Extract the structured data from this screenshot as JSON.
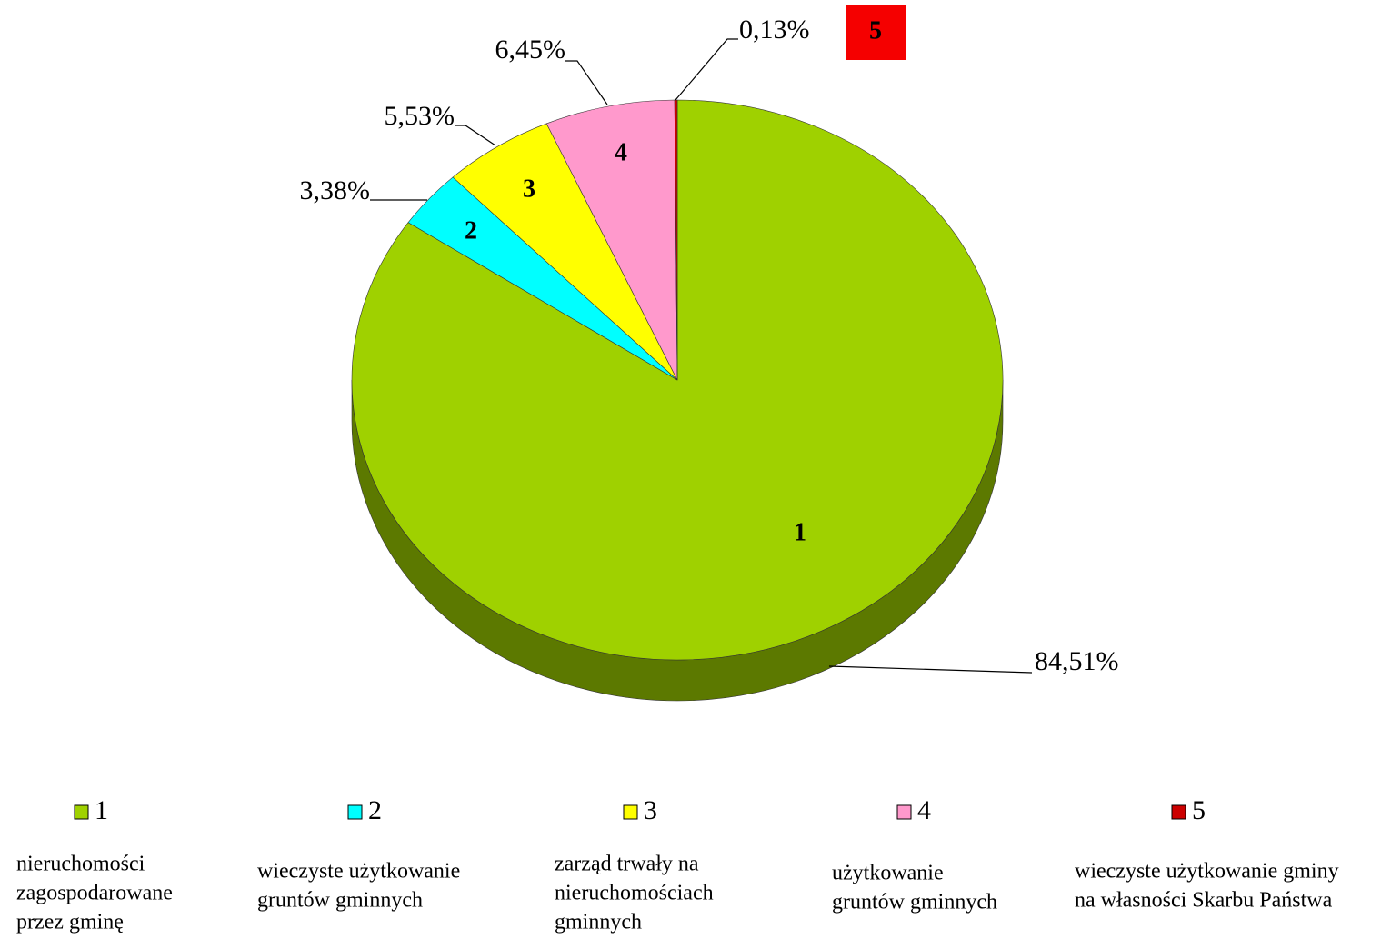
{
  "chart_data": {
    "type": "pie",
    "categories": [
      "1",
      "2",
      "3",
      "4",
      "5"
    ],
    "values": [
      84.51,
      3.38,
      5.53,
      6.45,
      0.13
    ],
    "value_labels": [
      "84,51%",
      "3,38%",
      "5,53%",
      "6,45%",
      "0,13%"
    ],
    "colors": [
      "#9fd100",
      "#00ffff",
      "#ffff00",
      "#ff99cc",
      "#cc0000"
    ],
    "descriptions": [
      [
        "nieruchomości",
        "zagospodarowane",
        "przez gminę"
      ],
      [
        "wieczyste użytkowanie",
        "gruntów gminnych"
      ],
      [
        "zarząd trwały na",
        "nieruchomościach",
        "gminnych"
      ],
      [
        "użytkowanie",
        "gruntów gminnych"
      ],
      [
        "wieczyste użytkowanie gminy",
        "na własności Skarbu Państwa"
      ]
    ]
  }
}
